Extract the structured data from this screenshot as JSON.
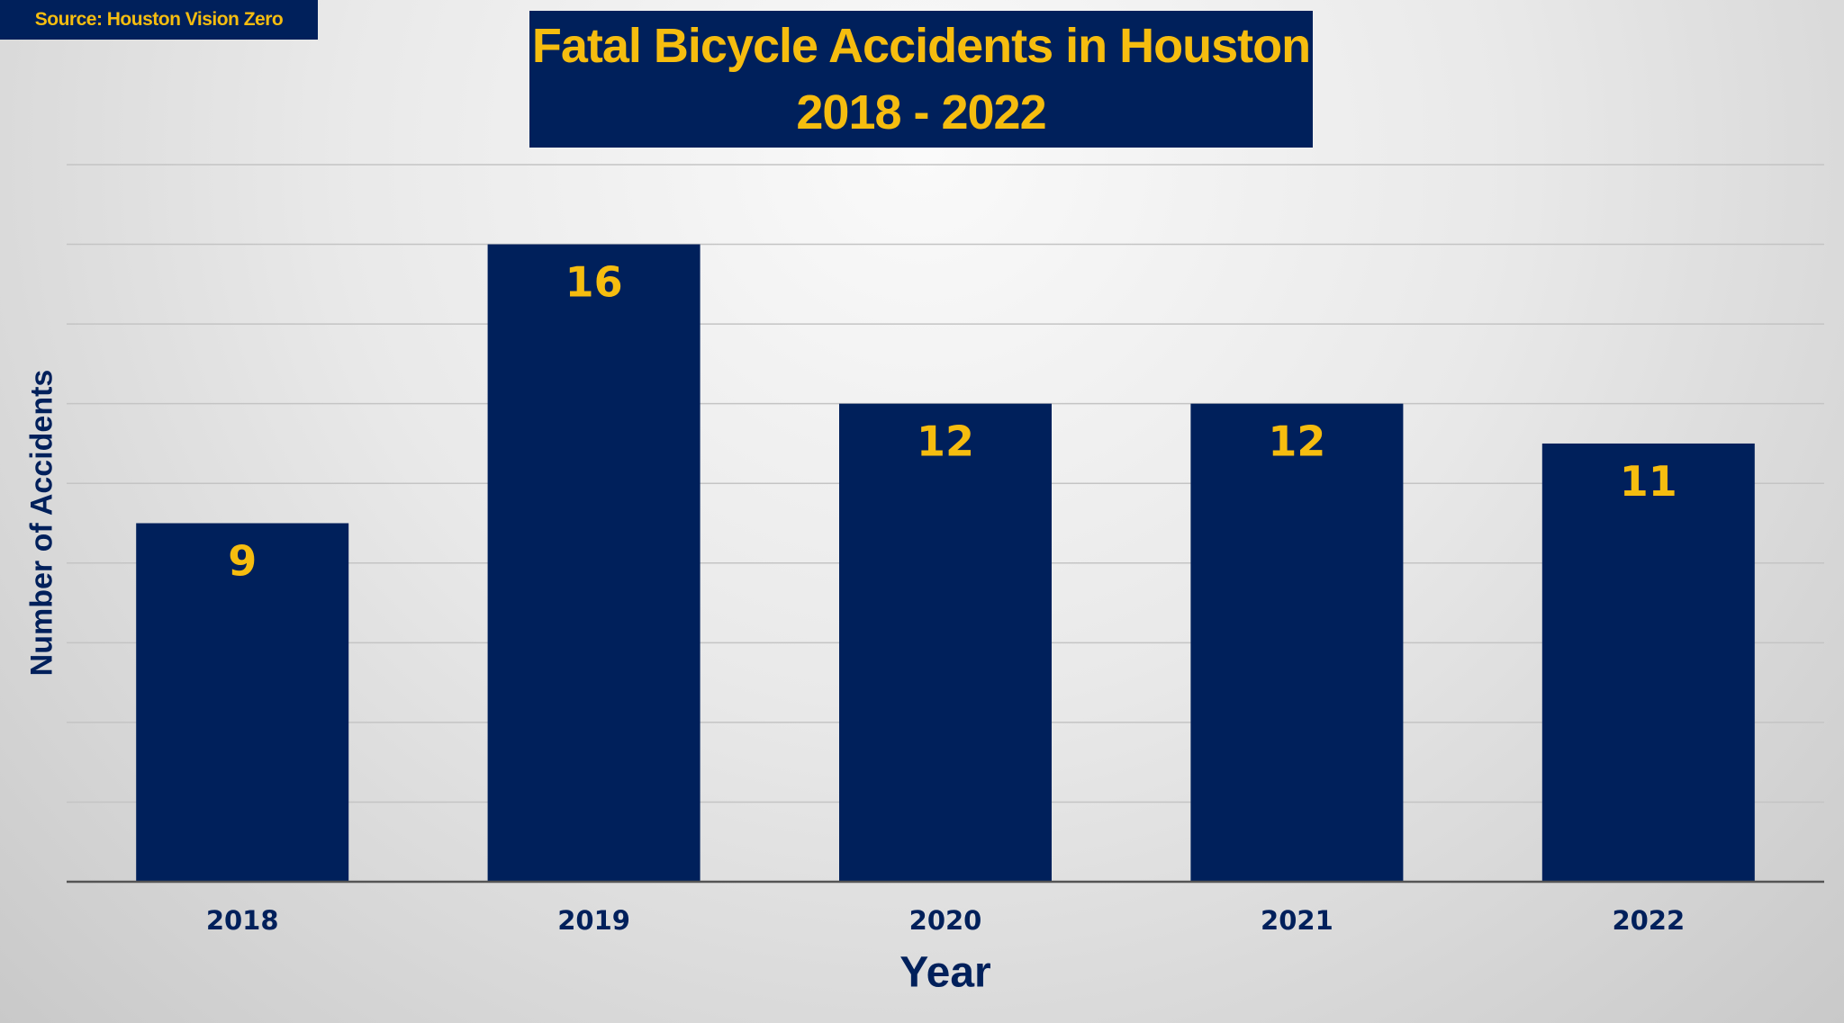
{
  "source": "Source: Houston Vision Zero",
  "chart_data": {
    "type": "bar",
    "title": "Fatal Bicycle Accidents in Houston",
    "subtitle": "2018 - 2022",
    "xlabel": "Year",
    "ylabel": "Number of Accidents",
    "categories": [
      "2018",
      "2019",
      "2020",
      "2021",
      "2022"
    ],
    "values": [
      9,
      16,
      12,
      12,
      11
    ],
    "ylim": [
      0,
      18
    ],
    "grid": true,
    "y_tick_labels_shown": false,
    "bar_color": "#00205b",
    "label_color": "#f6bd0f",
    "text_color": "#00205b"
  }
}
